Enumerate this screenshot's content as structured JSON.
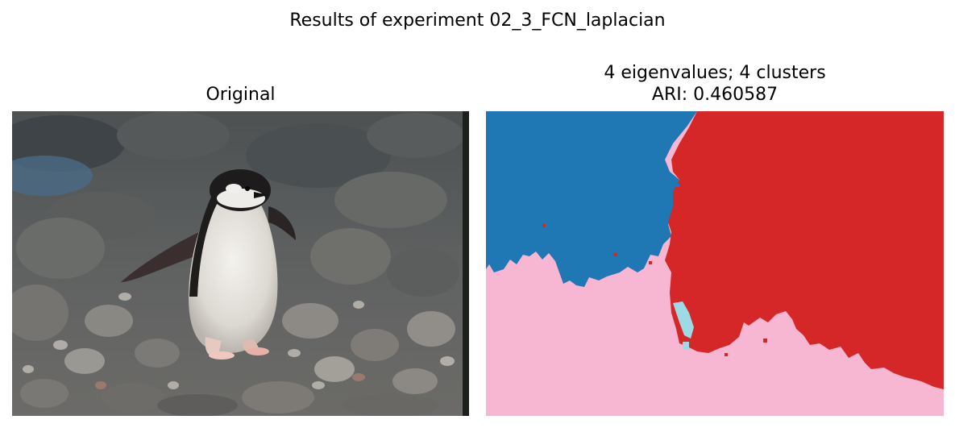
{
  "figure": {
    "suptitle": "Results of experiment 02_3_FCN_laplacian"
  },
  "panels": {
    "original": {
      "title": "Original",
      "content": "photo-penguin-on-rocks"
    },
    "segmentation": {
      "title_line1": "4 eigenvalues; 4 clusters",
      "title_line2": "ARI: 0.460587",
      "num_clusters": 4,
      "ari": 0.460587,
      "cluster_colors": [
        "#1f77b4",
        "#d62728",
        "#f7b6d2",
        "#9edae5"
      ]
    }
  }
}
